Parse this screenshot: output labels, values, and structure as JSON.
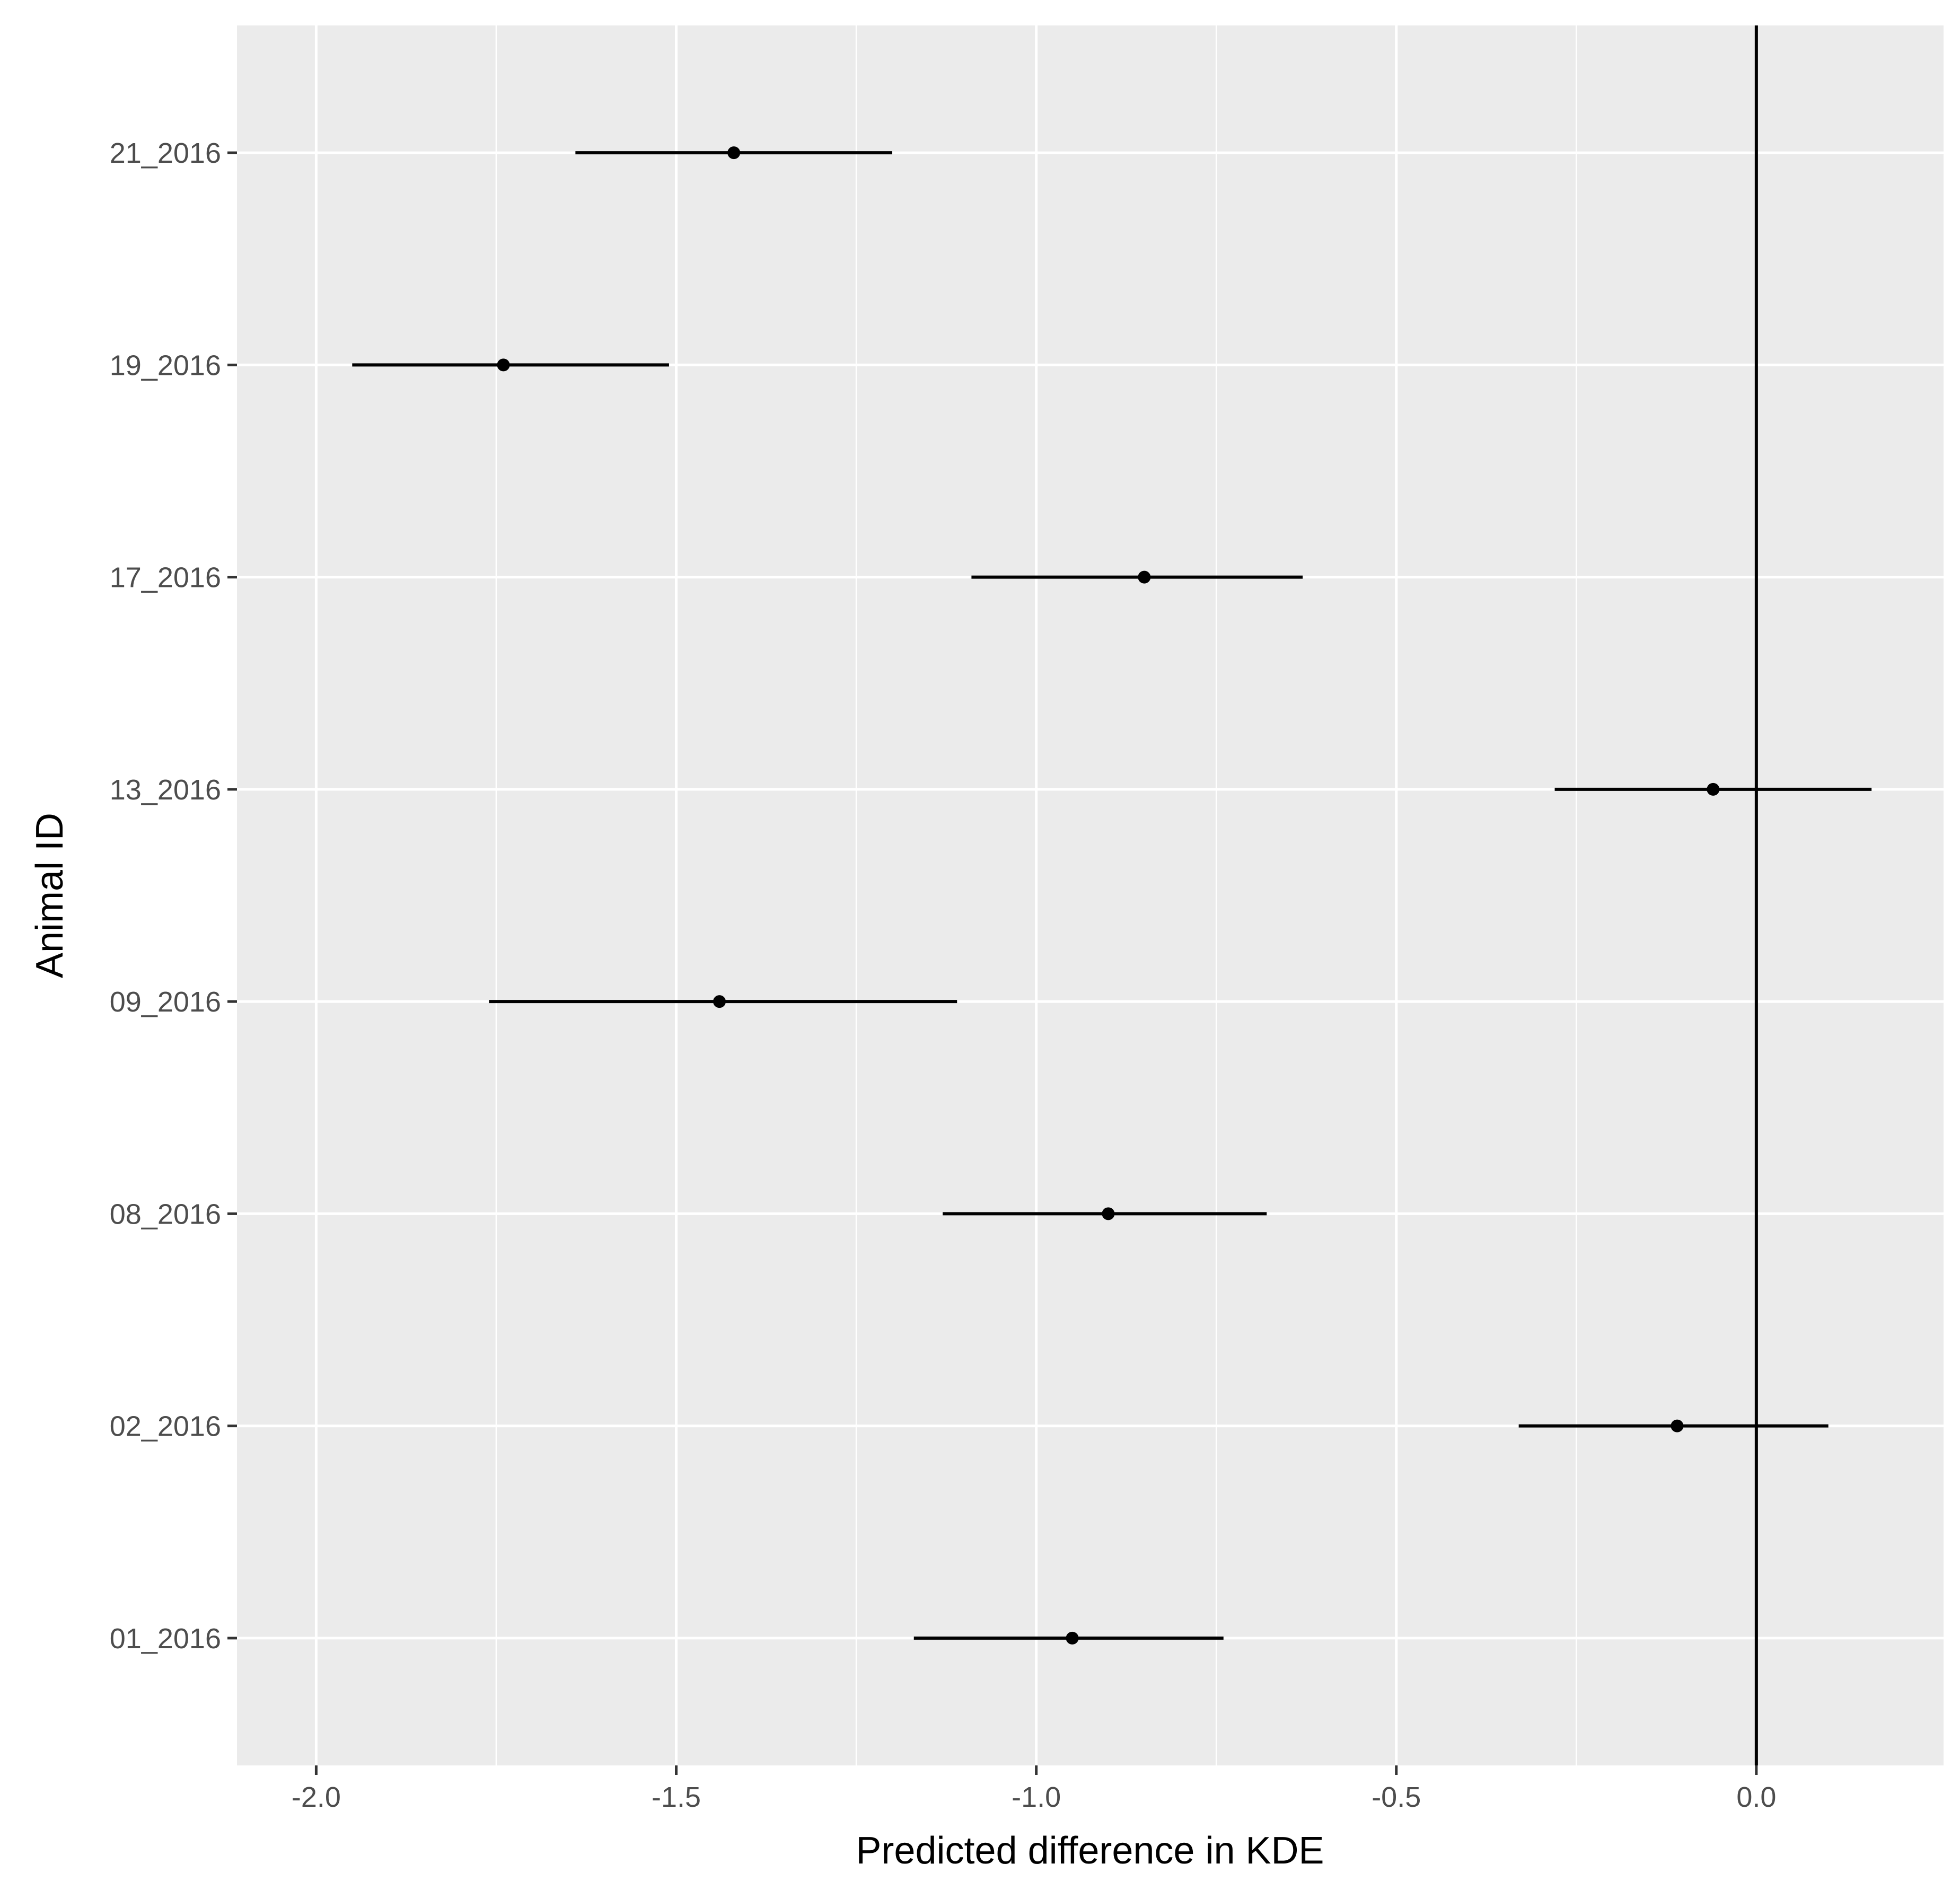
{
  "chart_data": {
    "type": "scatter",
    "subtype": "forest-plot",
    "xlabel": "Predicted difference in KDE",
    "ylabel": "Animal ID",
    "xlim": [
      -2.11,
      0.26
    ],
    "x_ticks": [
      -2.0,
      -1.5,
      -1.0,
      -0.5,
      0.0
    ],
    "x_tick_labels": [
      "-2.0",
      "-1.5",
      "-1.0",
      "-0.5",
      "0.0"
    ],
    "categories": [
      "01_2016",
      "02_2016",
      "08_2016",
      "09_2016",
      "13_2016",
      "17_2016",
      "19_2016",
      "21_2016"
    ],
    "estimates": [
      -0.95,
      -0.11,
      -0.9,
      -1.44,
      -0.06,
      -0.85,
      -1.74,
      -1.42
    ],
    "lower": [
      -1.17,
      -0.33,
      -1.13,
      -1.76,
      -0.28,
      -1.09,
      -1.95,
      -1.64
    ],
    "upper": [
      -0.74,
      0.1,
      -0.68,
      -1.11,
      0.16,
      -0.63,
      -1.51,
      -1.2
    ],
    "reference_line_x": 0.0,
    "grid": true,
    "colors": {
      "panel_background": "#ebebeb",
      "grid": "#ffffff",
      "marks": "#000000",
      "tick_text": "#4d4d4d"
    }
  }
}
